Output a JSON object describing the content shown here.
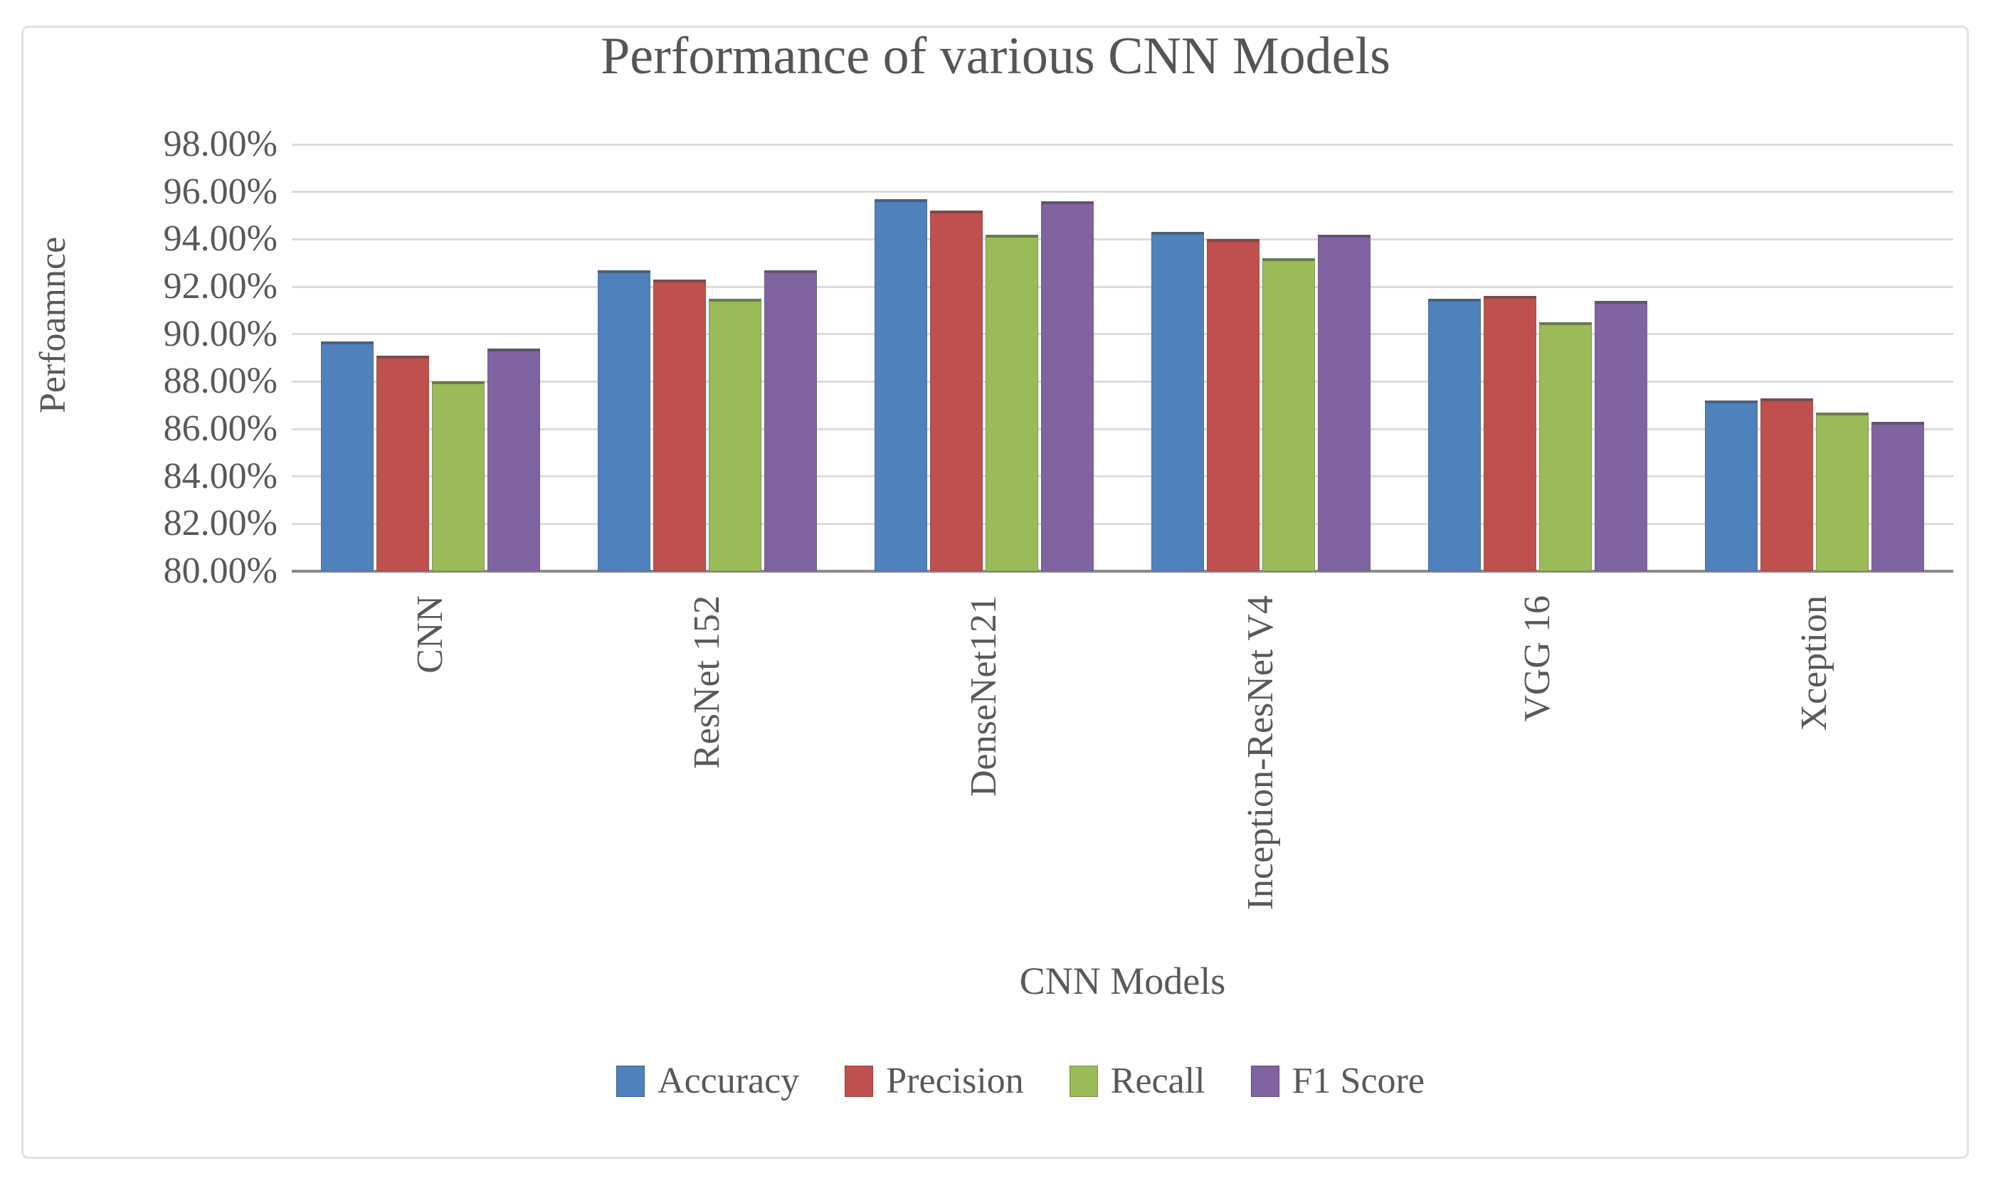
{
  "chart_data": {
    "type": "bar",
    "title": "Performance of various CNN Models",
    "xlabel": "CNN Models",
    "ylabel": "Perfoamnce",
    "categories": [
      "CNN",
      "ResNet 152",
      "DenseNet121",
      "Inception-ResNet V4",
      "VGG 16",
      "Xception"
    ],
    "series": [
      {
        "name": "Accuracy",
        "color": "#4F81BD",
        "values": [
          89.7,
          92.7,
          95.7,
          94.3,
          91.5,
          87.2
        ]
      },
      {
        "name": "Precision",
        "color": "#C0504D",
        "values": [
          89.1,
          92.3,
          95.2,
          94.0,
          91.6,
          87.3
        ]
      },
      {
        "name": "Recall",
        "color": "#9BBB59",
        "values": [
          88.0,
          91.5,
          94.2,
          93.2,
          90.5,
          86.7
        ]
      },
      {
        "name": "F1 Score",
        "color": "#8064A2",
        "values": [
          89.4,
          92.7,
          95.6,
          94.2,
          91.4,
          86.3
        ]
      }
    ],
    "ylim": [
      80,
      98
    ],
    "ytick_step": 2,
    "ytick_labels": [
      "80.00%",
      "82.00%",
      "84.00%",
      "86.00%",
      "88.00%",
      "90.00%",
      "92.00%",
      "94.00%",
      "96.00%",
      "98.00%"
    ],
    "grid": true,
    "legend_position": "bottom",
    "colors": {
      "grid": "#DCDCDC",
      "axis": "#8A8A8A",
      "text": "#595959",
      "frame": "#E2E2E2",
      "background": "#FFFFFF"
    }
  }
}
